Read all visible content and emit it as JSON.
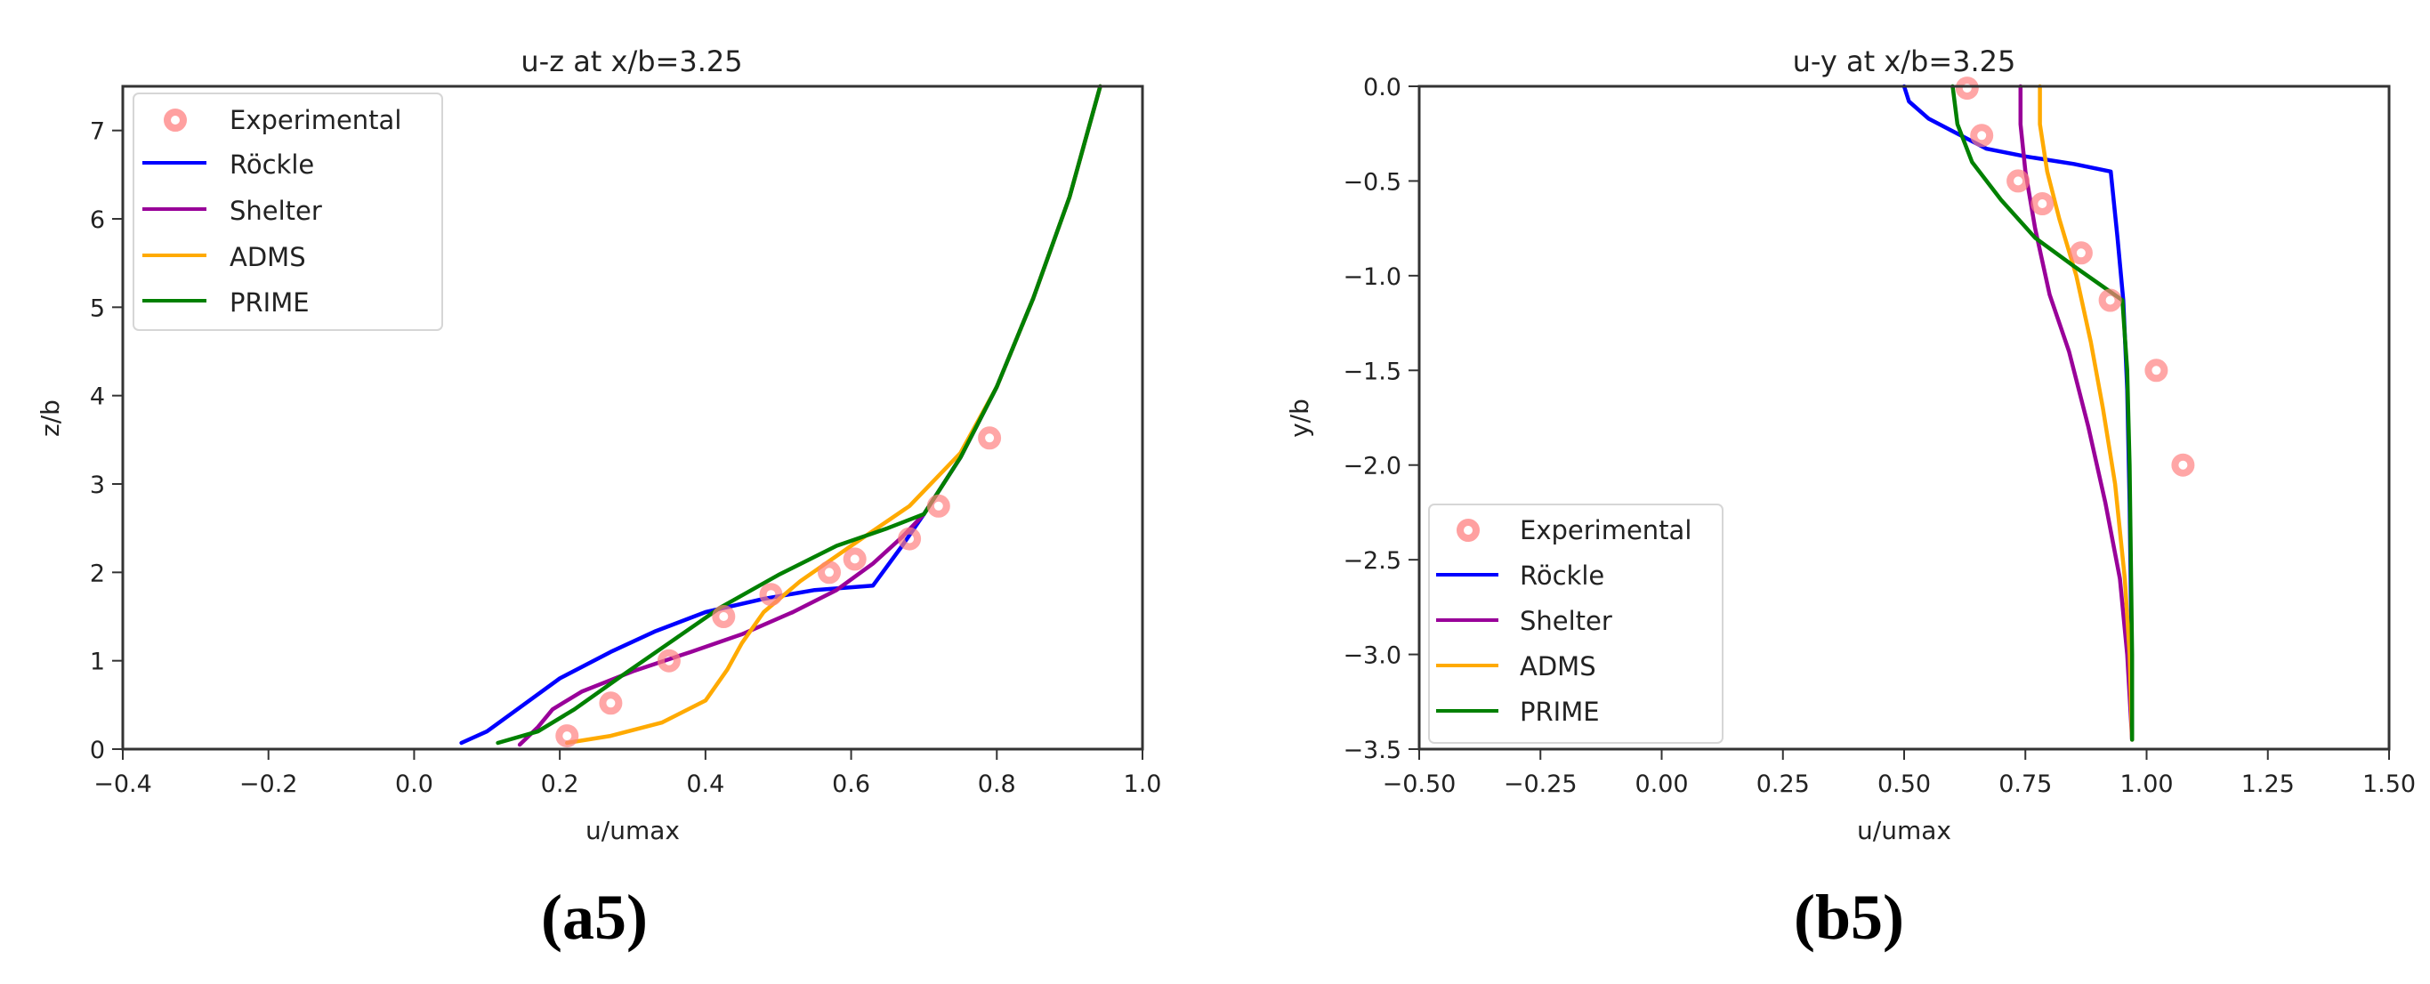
{
  "chart_data": [
    {
      "type": "line",
      "panel_caption": "(a5)",
      "title": "u-z at x/b=3.25",
      "xlabel": "u/umax",
      "ylabel": "z/b",
      "xlim": [
        -0.4,
        1.0
      ],
      "ylim": [
        0,
        7.5
      ],
      "xticks": [
        "−0.4",
        "−0.2",
        "0.0",
        "0.2",
        "0.4",
        "0.6",
        "0.8",
        "1.0"
      ],
      "xtick_values": [
        -0.4,
        -0.2,
        0.0,
        0.2,
        0.4,
        0.6,
        0.8,
        1.0
      ],
      "yticks": [
        "0",
        "1",
        "2",
        "3",
        "4",
        "5",
        "6",
        "7"
      ],
      "ytick_values": [
        0,
        1,
        2,
        3,
        4,
        5,
        6,
        7
      ],
      "grid": false,
      "legend_position": "upper left",
      "legend": [
        "Experimental",
        "Röckle",
        "Shelter",
        "ADMS",
        "PRIME"
      ],
      "series": [
        {
          "name": "Experimental",
          "kind": "scatter",
          "color": "#ff8080",
          "points": [
            [
              0.21,
              0.15
            ],
            [
              0.27,
              0.52
            ],
            [
              0.35,
              1.0
            ],
            [
              0.425,
              1.5
            ],
            [
              0.49,
              1.75
            ],
            [
              0.57,
              2.0
            ],
            [
              0.605,
              2.15
            ],
            [
              0.68,
              2.38
            ],
            [
              0.72,
              2.75
            ],
            [
              0.79,
              3.52
            ]
          ]
        },
        {
          "name": "Röckle",
          "kind": "line",
          "color": "#0000ff",
          "points": [
            [
              0.065,
              0.07
            ],
            [
              0.1,
              0.2
            ],
            [
              0.15,
              0.5
            ],
            [
              0.2,
              0.8
            ],
            [
              0.27,
              1.1
            ],
            [
              0.33,
              1.33
            ],
            [
              0.4,
              1.55
            ],
            [
              0.48,
              1.7
            ],
            [
              0.55,
              1.8
            ],
            [
              0.63,
              1.85
            ],
            [
              0.67,
              2.3
            ],
            [
              0.7,
              2.66
            ],
            [
              0.75,
              3.3
            ],
            [
              0.8,
              4.1
            ],
            [
              0.85,
              5.1
            ],
            [
              0.9,
              6.25
            ],
            [
              0.942,
              7.5
            ]
          ]
        },
        {
          "name": "Shelter",
          "kind": "line",
          "color": "#990099",
          "points": [
            [
              0.145,
              0.05
            ],
            [
              0.17,
              0.25
            ],
            [
              0.19,
              0.45
            ],
            [
              0.23,
              0.65
            ],
            [
              0.3,
              0.88
            ],
            [
              0.38,
              1.1
            ],
            [
              0.45,
              1.3
            ],
            [
              0.52,
              1.55
            ],
            [
              0.58,
              1.8
            ],
            [
              0.63,
              2.1
            ],
            [
              0.67,
              2.4
            ],
            [
              0.7,
              2.66
            ],
            [
              0.75,
              3.3
            ],
            [
              0.8,
              4.1
            ],
            [
              0.85,
              5.1
            ],
            [
              0.9,
              6.25
            ],
            [
              0.942,
              7.5
            ]
          ]
        },
        {
          "name": "ADMS",
          "kind": "line",
          "color": "#ffaa00",
          "points": [
            [
              0.21,
              0.07
            ],
            [
              0.27,
              0.15
            ],
            [
              0.34,
              0.3
            ],
            [
              0.4,
              0.55
            ],
            [
              0.43,
              0.9
            ],
            [
              0.45,
              1.2
            ],
            [
              0.48,
              1.55
            ],
            [
              0.53,
              1.9
            ],
            [
              0.6,
              2.3
            ],
            [
              0.68,
              2.75
            ],
            [
              0.75,
              3.35
            ],
            [
              0.8,
              4.1
            ],
            [
              0.85,
              5.1
            ],
            [
              0.9,
              6.25
            ],
            [
              0.942,
              7.5
            ]
          ]
        },
        {
          "name": "PRIME",
          "kind": "line",
          "color": "#008000",
          "points": [
            [
              0.115,
              0.07
            ],
            [
              0.17,
              0.2
            ],
            [
              0.22,
              0.45
            ],
            [
              0.28,
              0.8
            ],
            [
              0.35,
              1.2
            ],
            [
              0.42,
              1.6
            ],
            [
              0.5,
              1.97
            ],
            [
              0.58,
              2.3
            ],
            [
              0.65,
              2.5
            ],
            [
              0.7,
              2.66
            ],
            [
              0.75,
              3.3
            ],
            [
              0.8,
              4.1
            ],
            [
              0.85,
              5.1
            ],
            [
              0.9,
              6.25
            ],
            [
              0.942,
              7.5
            ]
          ]
        }
      ]
    },
    {
      "type": "line",
      "panel_caption": "(b5)",
      "title": "u-y at x/b=3.25",
      "xlabel": "u/umax",
      "ylabel": "y/b",
      "xlim": [
        -0.5,
        1.5
      ],
      "ylim": [
        -3.5,
        0.0
      ],
      "xticks": [
        "−0.50",
        "−0.25",
        "0.00",
        "0.25",
        "0.50",
        "0.75",
        "1.00",
        "1.25",
        "1.50"
      ],
      "xtick_values": [
        -0.5,
        -0.25,
        0.0,
        0.25,
        0.5,
        0.75,
        1.0,
        1.25,
        1.5
      ],
      "yticks": [
        "0.0",
        "−0.5",
        "−1.0",
        "−1.5",
        "−2.0",
        "−2.5",
        "−3.0",
        "−3.5"
      ],
      "ytick_values": [
        0.0,
        -0.5,
        -1.0,
        -1.5,
        -2.0,
        -2.5,
        -3.0,
        -3.5
      ],
      "grid": false,
      "legend_position": "lower left",
      "legend": [
        "Experimental",
        "Röckle",
        "Shelter",
        "ADMS",
        "PRIME"
      ],
      "series": [
        {
          "name": "Experimental",
          "kind": "scatter",
          "color": "#ff8080",
          "points": [
            [
              0.63,
              -0.01
            ],
            [
              0.66,
              -0.26
            ],
            [
              0.735,
              -0.5
            ],
            [
              0.785,
              -0.62
            ],
            [
              0.865,
              -0.88
            ],
            [
              0.925,
              -1.13
            ],
            [
              1.02,
              -1.5
            ],
            [
              1.075,
              -2.0
            ]
          ]
        },
        {
          "name": "Röckle",
          "kind": "line",
          "color": "#0000ff",
          "points": [
            [
              0.5,
              0.0
            ],
            [
              0.51,
              -0.08
            ],
            [
              0.55,
              -0.17
            ],
            [
              0.61,
              -0.25
            ],
            [
              0.67,
              -0.33
            ],
            [
              0.75,
              -0.37
            ],
            [
              0.85,
              -0.41
            ],
            [
              0.926,
              -0.45
            ],
            [
              0.94,
              -0.8
            ],
            [
              0.952,
              -1.13
            ],
            [
              0.96,
              -1.6
            ],
            [
              0.965,
              -2.2
            ],
            [
              0.968,
              -2.8
            ],
            [
              0.97,
              -3.45
            ]
          ]
        },
        {
          "name": "Shelter",
          "kind": "line",
          "color": "#990099",
          "points": [
            [
              0.74,
              0.0
            ],
            [
              0.74,
              -0.2
            ],
            [
              0.75,
              -0.45
            ],
            [
              0.77,
              -0.75
            ],
            [
              0.8,
              -1.1
            ],
            [
              0.84,
              -1.4
            ],
            [
              0.88,
              -1.8
            ],
            [
              0.915,
              -2.2
            ],
            [
              0.945,
              -2.6
            ],
            [
              0.96,
              -3.0
            ],
            [
              0.97,
              -3.45
            ]
          ]
        },
        {
          "name": "ADMS",
          "kind": "line",
          "color": "#ffaa00",
          "points": [
            [
              0.78,
              0.0
            ],
            [
              0.78,
              -0.2
            ],
            [
              0.795,
              -0.45
            ],
            [
              0.82,
              -0.7
            ],
            [
              0.855,
              -1.0
            ],
            [
              0.885,
              -1.35
            ],
            [
              0.91,
              -1.7
            ],
            [
              0.935,
              -2.1
            ],
            [
              0.955,
              -2.6
            ],
            [
              0.965,
              -3.0
            ],
            [
              0.97,
              -3.45
            ]
          ]
        },
        {
          "name": "PRIME",
          "kind": "line",
          "color": "#008000",
          "points": [
            [
              0.6,
              0.0
            ],
            [
              0.61,
              -0.2
            ],
            [
              0.64,
              -0.4
            ],
            [
              0.7,
              -0.6
            ],
            [
              0.77,
              -0.8
            ],
            [
              0.85,
              -0.95
            ],
            [
              0.95,
              -1.13
            ],
            [
              0.96,
              -1.5
            ],
            [
              0.965,
              -2.0
            ],
            [
              0.968,
              -2.6
            ],
            [
              0.97,
              -3.0
            ],
            [
              0.97,
              -3.45
            ]
          ]
        }
      ]
    }
  ],
  "panels": {
    "a": {
      "title": "u-z at x/b=3.25",
      "xlabel": "u/umax",
      "ylabel": "z/b",
      "caption": "(a5)",
      "legend": [
        "Experimental",
        "Röckle",
        "Shelter",
        "ADMS",
        "PRIME"
      ]
    },
    "b": {
      "title": "u-y at x/b=3.25",
      "xlabel": "u/umax",
      "ylabel": "y/b",
      "caption": "(b5)",
      "legend": [
        "Experimental",
        "Röckle",
        "Shelter",
        "ADMS",
        "PRIME"
      ]
    }
  }
}
